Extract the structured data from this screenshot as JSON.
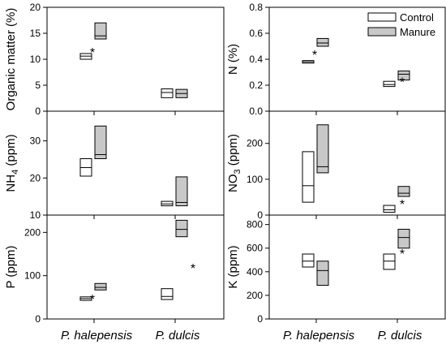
{
  "colors": {
    "control": "#ffffff",
    "manure": "#c8c8c8",
    "stroke": "#000000"
  },
  "categories": [
    "P. halepensis",
    "P. dulcis"
  ],
  "legend": {
    "position": "top-right",
    "entries": [
      {
        "label": "Control"
      },
      {
        "label": "Manure"
      }
    ]
  },
  "chart_data": [
    {
      "id": "om",
      "type": "box",
      "ylabel": "Organic matter (%)",
      "ylim": [
        0,
        20
      ],
      "yticks": [
        "0",
        "5",
        "10",
        "15",
        "20"
      ],
      "series": [
        {
          "name": "Control",
          "boxes": [
            {
              "q1": 10.0,
              "median": 10.6,
              "q3": 11.1
            },
            {
              "q1": 2.6,
              "median": 3.6,
              "q3": 4.3
            }
          ]
        },
        {
          "name": "Manure",
          "boxes": [
            {
              "q1": 13.9,
              "median": 14.5,
              "q3": 17.0
            },
            {
              "q1": 2.6,
              "median": 3.4,
              "q3": 4.2
            }
          ]
        }
      ],
      "stars": [
        {
          "text": "*",
          "category": 0,
          "y": 11.7
        }
      ]
    },
    {
      "id": "n",
      "type": "box",
      "ylabel": "N (%)",
      "ylim": [
        0,
        0.8
      ],
      "yticks": [
        "0.0",
        "0.2",
        "0.4",
        "0.6",
        "0.8"
      ],
      "series": [
        {
          "name": "Control",
          "boxes": [
            {
              "q1": 0.37,
              "median": 0.38,
              "q3": 0.39
            },
            {
              "q1": 0.19,
              "median": 0.205,
              "q3": 0.23
            }
          ]
        },
        {
          "name": "Manure",
          "boxes": [
            {
              "q1": 0.5,
              "median": 0.525,
              "q3": 0.56
            },
            {
              "q1": 0.24,
              "median": 0.285,
              "q3": 0.31
            }
          ]
        }
      ],
      "stars": [
        {
          "text": "*",
          "category": 0,
          "y": 0.45
        },
        {
          "text": "*",
          "category": 1,
          "y": 0.24
        }
      ]
    },
    {
      "id": "nh4",
      "type": "box",
      "ylabel": "NH",
      "ylabel_sub": "4",
      "ylabel_unit": " (ppm)",
      "ylim": [
        10,
        38
      ],
      "yticks": [
        "10",
        "20",
        "30"
      ],
      "series": [
        {
          "name": "Control",
          "boxes": [
            {
              "q1": 20.5,
              "median": 22.8,
              "q3": 25.2
            },
            {
              "q1": 12.5,
              "median": 13.0,
              "q3": 13.7
            }
          ]
        },
        {
          "name": "Manure",
          "boxes": [
            {
              "q1": 25.2,
              "median": 26.3,
              "q3": 34.0
            },
            {
              "q1": 12.5,
              "median": 13.4,
              "q3": 20.3
            }
          ]
        }
      ],
      "stars": []
    },
    {
      "id": "no3",
      "type": "box",
      "ylabel": "NO",
      "ylabel_sub": "3",
      "ylabel_unit": " (ppm)",
      "ylim": [
        0,
        290
      ],
      "yticks": [
        "0",
        "100",
        "200"
      ],
      "series": [
        {
          "name": "Control",
          "boxes": [
            {
              "q1": 36,
              "median": 82,
              "q3": 177
            },
            {
              "q1": 8,
              "median": 15,
              "q3": 27
            }
          ]
        },
        {
          "name": "Manure",
          "boxes": [
            {
              "q1": 118,
              "median": 135,
              "q3": 252
            },
            {
              "q1": 52,
              "median": 61,
              "q3": 80
            }
          ]
        }
      ],
      "stars": [
        {
          "text": "*",
          "category": 1,
          "y": 36
        }
      ]
    },
    {
      "id": "p",
      "type": "box",
      "ylabel": "P (ppm)",
      "ylim": [
        0,
        240
      ],
      "yticks": [
        "0",
        "100",
        "200"
      ],
      "series": [
        {
          "name": "Control",
          "boxes": [
            {
              "q1": 43,
              "median": 47,
              "q3": 51
            },
            {
              "q1": 45,
              "median": 52,
              "q3": 70
            }
          ]
        },
        {
          "name": "Manure",
          "boxes": [
            {
              "q1": 67,
              "median": 73,
              "q3": 82
            },
            {
              "q1": 190,
              "median": 207,
              "q3": 228
            }
          ]
        }
      ],
      "stars": [
        {
          "text": "*",
          "category": 0,
          "y": 51
        },
        {
          "text": "*",
          "category": 1,
          "y": 122
        }
      ]
    },
    {
      "id": "k",
      "type": "box",
      "ylabel": "K (ppm)",
      "ylim": [
        0,
        880
      ],
      "yticks": [
        "0",
        "200",
        "400",
        "600",
        "800"
      ],
      "series": [
        {
          "name": "Control",
          "boxes": [
            {
              "q1": 440,
              "median": 490,
              "q3": 550
            },
            {
              "q1": 420,
              "median": 490,
              "q3": 550
            }
          ]
        },
        {
          "name": "Manure",
          "boxes": [
            {
              "q1": 285,
              "median": 410,
              "q3": 490
            },
            {
              "q1": 600,
              "median": 690,
              "q3": 760
            }
          ]
        }
      ],
      "stars": [
        {
          "text": "*",
          "category": 1,
          "y": 570
        }
      ]
    }
  ]
}
